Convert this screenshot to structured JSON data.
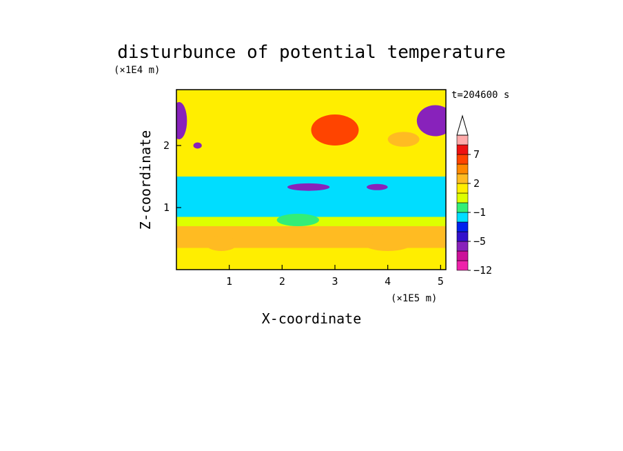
{
  "chart_data": {
    "type": "heatmap",
    "title": "disturbunce of potential temperature",
    "xlabel": "X-coordinate",
    "ylabel": "Z-coordinate",
    "x_unit": "(×1E5 m)",
    "y_unit": "(×1E4 m)",
    "time_label": "t=204600 s",
    "xlim": [
      0,
      5.1
    ],
    "ylim": [
      0,
      2.9
    ],
    "x_ticks": [
      "1",
      "2",
      "3",
      "4",
      "5"
    ],
    "x_tick_values": [
      1,
      2,
      3,
      4,
      5
    ],
    "y_ticks": [
      "1",
      "2"
    ],
    "y_tick_values": [
      1,
      2
    ],
    "colorbar": {
      "labels": [
        "7",
        "2",
        "−1",
        "−5",
        "−12"
      ],
      "label_levels": [
        7,
        2,
        -1,
        -5,
        -12
      ],
      "levels": [
        -12,
        -9,
        -7,
        -5,
        -3,
        -2,
        -1,
        0,
        1,
        2,
        3,
        5,
        7,
        9,
        12
      ],
      "colors": [
        "#ee22aa",
        "#cc1199",
        "#8822bb",
        "#3311cc",
        "#0022ee",
        "#00ddff",
        "#33ee77",
        "#ddff00",
        "#ffee00",
        "#ffbb22",
        "#ff8800",
        "#ff4400",
        "#ee1111",
        "#ffaaaa"
      ],
      "extend_max": true
    },
    "bands": [
      {
        "z": [
          0.0,
          0.35
        ],
        "value": 1.5
      },
      {
        "z": [
          0.35,
          0.7
        ],
        "value": 2.5
      },
      {
        "z": [
          0.7,
          0.85
        ],
        "value": 0.5
      },
      {
        "z": [
          0.85,
          1.5
        ],
        "value": -1.5
      },
      {
        "z": [
          1.5,
          2.9
        ],
        "value": 1.0
      }
    ],
    "features": [
      {
        "x": 3.0,
        "z": 2.25,
        "rx": 0.45,
        "rz": 0.25,
        "value": 5.5
      },
      {
        "x": 4.3,
        "z": 2.1,
        "rx": 0.3,
        "rz": 0.12,
        "value": 2.8
      },
      {
        "x": 4.9,
        "z": 2.4,
        "rx": 0.35,
        "rz": 0.25,
        "value": -5.5
      },
      {
        "x": 0.05,
        "z": 2.4,
        "rx": 0.15,
        "rz": 0.3,
        "value": -5.5
      },
      {
        "x": 2.5,
        "z": 1.33,
        "rx": 0.4,
        "rz": 0.06,
        "value": -5.5
      },
      {
        "x": 3.8,
        "z": 1.33,
        "rx": 0.2,
        "rz": 0.05,
        "value": -5.5
      },
      {
        "x": 0.85,
        "z": 0.42,
        "rx": 0.3,
        "rz": 0.12,
        "value": 2.5
      },
      {
        "x": 2.3,
        "z": 0.8,
        "rx": 0.4,
        "rz": 0.1,
        "value": -0.5
      },
      {
        "x": 0.4,
        "z": 2.0,
        "rx": 0.08,
        "rz": 0.05,
        "value": -5.5
      },
      {
        "x": 4.0,
        "z": 0.45,
        "rx": 0.5,
        "rz": 0.15,
        "value": 2.5
      }
    ]
  }
}
